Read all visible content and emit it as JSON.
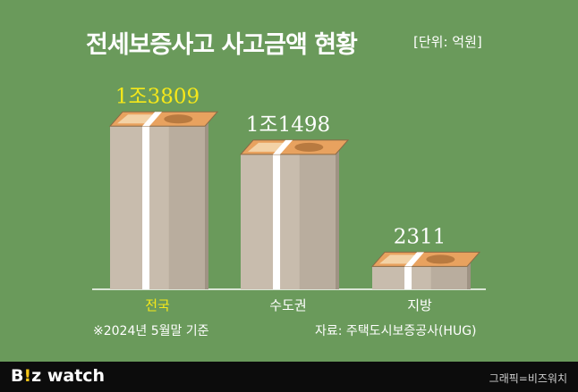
{
  "title": "전세보증사고 사고금액 현황",
  "unit_note": "[단위: 억원]",
  "chart_data": {
    "type": "bar",
    "categories": [
      "전국",
      "수도권",
      "지방"
    ],
    "values": [
      13809,
      11498,
      2311
    ],
    "value_labels": [
      "1조3809",
      "1조1498",
      "2311"
    ],
    "highlight_index": 0,
    "ylim": [
      0,
      15000
    ]
  },
  "colors": {
    "background": "#6a9a5b",
    "highlight": "#f5e81a",
    "text": "#ffffff"
  },
  "source_left": "※2024년 5월말 기준",
  "source_right": "자료: 주택도시보증공사(HUG)",
  "footer": {
    "logo_main": "B",
    "logo_accent": "!",
    "logo_rest": "z watch",
    "credit": "그래픽=비즈워치"
  }
}
